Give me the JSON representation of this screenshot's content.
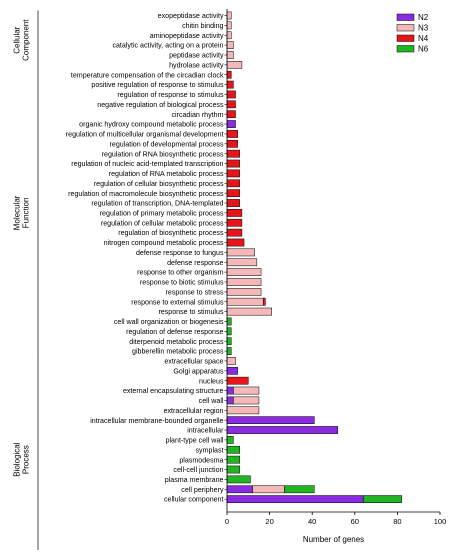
{
  "chart_data": {
    "type": "bar",
    "orientation": "horizontal",
    "stacked": true,
    "xlabel": "Number of genes",
    "xlim": [
      0,
      100
    ],
    "xticks": [
      0,
      20,
      40,
      60,
      80,
      100
    ],
    "grid": false,
    "legend_position": "top-right",
    "series": [
      {
        "name": "N2",
        "color": "#8a2be2"
      },
      {
        "name": "N3",
        "color": "#f4b8b8"
      },
      {
        "name": "N4",
        "color": "#e8141b"
      },
      {
        "name": "N6",
        "color": "#22b522"
      }
    ],
    "groups": [
      {
        "label": "Cellular Component",
        "from": 0,
        "to": 5
      },
      {
        "label": "Molecular Function",
        "from": 6,
        "to": 34
      },
      {
        "label": "Biological Process",
        "from": 35,
        "to": 55
      }
    ],
    "categories": [
      {
        "name": "exopeptidase activity",
        "values": [
          0,
          2,
          0,
          0
        ]
      },
      {
        "name": "chitin binding",
        "values": [
          0,
          2,
          0,
          0
        ]
      },
      {
        "name": "aminopeptidase activity",
        "values": [
          0,
          2,
          0,
          0
        ]
      },
      {
        "name": "catalytic activity, acting on a protein",
        "values": [
          0,
          3,
          0,
          0
        ]
      },
      {
        "name": "peptidase activity",
        "values": [
          0,
          3,
          0,
          0
        ]
      },
      {
        "name": "hydrolase activity",
        "values": [
          0,
          7,
          0,
          0
        ]
      },
      {
        "name": "temperature compensation of the circadian clock",
        "values": [
          0,
          0,
          2,
          0
        ]
      },
      {
        "name": "positive regulation of response to stimulus",
        "values": [
          0,
          0,
          3,
          0
        ]
      },
      {
        "name": "regulation of response to stimulus",
        "values": [
          0,
          0,
          4,
          0
        ]
      },
      {
        "name": "negative regulation of biological process",
        "values": [
          0,
          0,
          4,
          0
        ]
      },
      {
        "name": "circadian rhythm",
        "values": [
          0,
          0,
          4,
          0
        ]
      },
      {
        "name": "organic hydroxy compound metabolic process",
        "values": [
          4,
          0,
          0,
          0
        ]
      },
      {
        "name": "regulation of multicellular organismal development",
        "values": [
          0,
          0,
          5,
          0
        ]
      },
      {
        "name": "regulation of developmental process",
        "values": [
          0,
          0,
          5,
          0
        ]
      },
      {
        "name": "regulation of RNA biosynthetic process",
        "values": [
          0,
          0,
          6,
          0
        ]
      },
      {
        "name": "regulation of nucleic acid-templated transcription",
        "values": [
          0,
          0,
          6,
          0
        ]
      },
      {
        "name": "regulation of RNA metabolic process",
        "values": [
          0,
          0,
          6,
          0
        ]
      },
      {
        "name": "regulation of cellular biosynthetic process",
        "values": [
          0,
          0,
          6,
          0
        ]
      },
      {
        "name": "regulation of macromolecule biosynthetic process",
        "values": [
          0,
          0,
          6,
          0
        ]
      },
      {
        "name": "regulation of transcription, DNA-templated",
        "values": [
          0,
          0,
          6,
          0
        ]
      },
      {
        "name": "regulation of primary metabolic process",
        "values": [
          0,
          0,
          7,
          0
        ]
      },
      {
        "name": "regulation of cellular metabolic process",
        "values": [
          0,
          0,
          7,
          0
        ]
      },
      {
        "name": "regulation of biosynthetic process",
        "values": [
          0,
          0,
          7,
          0
        ]
      },
      {
        "name": "nitrogen compound metabolic process",
        "values": [
          0,
          0,
          8,
          0
        ]
      },
      {
        "name": "defense response to fungus",
        "values": [
          0,
          13,
          0,
          0
        ]
      },
      {
        "name": "defense response",
        "values": [
          0,
          14,
          0,
          0
        ]
      },
      {
        "name": "response to other organism",
        "values": [
          0,
          16,
          0,
          0
        ]
      },
      {
        "name": "response to biotic stimulus",
        "values": [
          0,
          16,
          0,
          0
        ]
      },
      {
        "name": "response to stress",
        "values": [
          0,
          16,
          0,
          0
        ]
      },
      {
        "name": "response to external stimulus",
        "values": [
          0,
          17,
          1,
          0
        ]
      },
      {
        "name": "response to stimulus",
        "values": [
          0,
          21,
          0,
          0
        ]
      },
      {
        "name": "cell wall organization or biogenesis",
        "values": [
          0,
          0,
          0,
          2
        ]
      },
      {
        "name": "regulation of defense response",
        "values": [
          0,
          0,
          0,
          2
        ]
      },
      {
        "name": "diterpenoid metabolic process",
        "values": [
          0,
          0,
          0,
          2
        ]
      },
      {
        "name": "gibberellin metabolic process",
        "values": [
          0,
          0,
          0,
          2
        ]
      },
      {
        "name": "extracellular space",
        "values": [
          0,
          4,
          0,
          0
        ]
      },
      {
        "name": "Golgi apparatus",
        "values": [
          5,
          0,
          0,
          0
        ]
      },
      {
        "name": "nucleus",
        "values": [
          0,
          0,
          10,
          0
        ]
      },
      {
        "name": "external encapsulating structure",
        "values": [
          3,
          12,
          0,
          0
        ]
      },
      {
        "name": "cell wall",
        "values": [
          3,
          12,
          0,
          0
        ]
      },
      {
        "name": "extracellular region",
        "values": [
          0,
          15,
          0,
          0
        ]
      },
      {
        "name": "intracellular membrane-bounded organelle",
        "values": [
          41,
          0,
          0,
          0
        ]
      },
      {
        "name": "intracellular",
        "values": [
          52,
          0,
          0,
          0
        ]
      },
      {
        "name": "plant-type cell wall",
        "values": [
          0,
          0,
          0,
          3
        ]
      },
      {
        "name": "symplast",
        "values": [
          0,
          0,
          0,
          6
        ]
      },
      {
        "name": "plasmodesma",
        "values": [
          0,
          0,
          0,
          6
        ]
      },
      {
        "name": "cell-cell junction",
        "values": [
          0,
          0,
          0,
          6
        ]
      },
      {
        "name": "plasma membrane",
        "values": [
          0,
          0,
          0,
          11
        ]
      },
      {
        "name": "cell periphery",
        "values": [
          12,
          15,
          0,
          14
        ]
      },
      {
        "name": "cellular component",
        "values": [
          64,
          0,
          0,
          18
        ]
      }
    ]
  }
}
